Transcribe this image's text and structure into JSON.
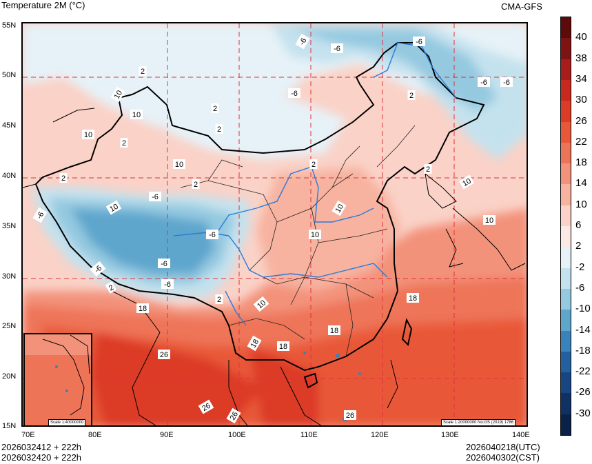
{
  "header": {
    "title": "Temperature  2M (°C)",
    "model": "CMA-GFS"
  },
  "axes": {
    "lat_labels": [
      "55N",
      "50N",
      "45N",
      "40N",
      "35N",
      "30N",
      "25N",
      "20N",
      "15N"
    ],
    "lon_labels": [
      "70E",
      "80E",
      "90E",
      "100E",
      "110E",
      "120E",
      "130E",
      "140E"
    ]
  },
  "colorbar": {
    "labels": [
      "40",
      "38",
      "34",
      "30",
      "26",
      "22",
      "18",
      "14",
      "10",
      "6",
      "2",
      "-2",
      "-6",
      "-10",
      "-14",
      "-18",
      "-22",
      "-26",
      "-30"
    ],
    "colors": [
      "#5e0a0a",
      "#7f1212",
      "#a81c1c",
      "#c8291f",
      "#dc3b27",
      "#e85838",
      "#ee7458",
      "#f3927a",
      "#f7b3a0",
      "#fad2c7",
      "#fce9e3",
      "#e6f2f8",
      "#c4e2ee",
      "#94c9e0",
      "#5fa6cd",
      "#3a82bb",
      "#2460a0",
      "#174683",
      "#0f3165",
      "#0a2148"
    ]
  },
  "contour_labels": [
    {
      "t": "-6"
    },
    {
      "t": "-6"
    },
    {
      "t": "-6"
    },
    {
      "t": "-6"
    },
    {
      "t": "-6"
    },
    {
      "t": "-6"
    },
    {
      "t": "-6"
    },
    {
      "t": "-6"
    },
    {
      "t": "-6"
    },
    {
      "t": "-6"
    },
    {
      "t": "-6"
    },
    {
      "t": "-6"
    },
    {
      "t": "2"
    },
    {
      "t": "2"
    },
    {
      "t": "2"
    },
    {
      "t": "2"
    },
    {
      "t": "2"
    },
    {
      "t": "2"
    },
    {
      "t": "2"
    },
    {
      "t": "2"
    },
    {
      "t": "2"
    },
    {
      "t": "2"
    },
    {
      "t": "2"
    },
    {
      "t": "10"
    },
    {
      "t": "10"
    },
    {
      "t": "10"
    },
    {
      "t": "10"
    },
    {
      "t": "10"
    },
    {
      "t": "10"
    },
    {
      "t": "10"
    },
    {
      "t": "10"
    },
    {
      "t": "10"
    },
    {
      "t": "10"
    },
    {
      "t": "18"
    },
    {
      "t": "18"
    },
    {
      "t": "18"
    },
    {
      "t": "18"
    },
    {
      "t": "18"
    },
    {
      "t": "26"
    },
    {
      "t": "26"
    },
    {
      "t": "26"
    },
    {
      "t": "26"
    }
  ],
  "inset": {
    "scale": "Scale 1:40000000"
  },
  "main_scale": "Scale 1:20000000 No:GS (2019) 1786",
  "footer": {
    "left1": "2026032412 + 222h",
    "left2": "2026032420 + 222h",
    "right1": "2026040218(UTC)",
    "right2": "2026040302(CST)"
  }
}
